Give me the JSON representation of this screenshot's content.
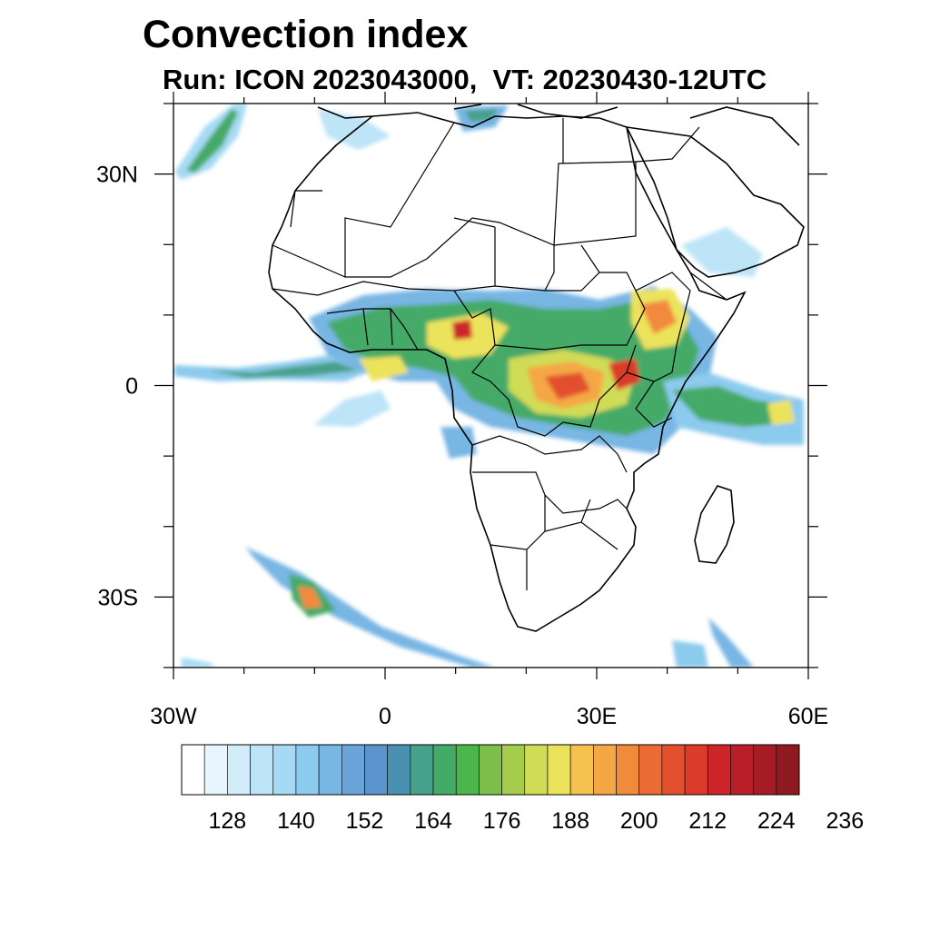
{
  "title": "Convection index",
  "subtitle": "Run: ICON 2023043000,  VT: 20230430-12UTC",
  "map": {
    "lon_range": [
      -30,
      60
    ],
    "lat_range": [
      -40,
      40
    ],
    "y_ticks": [
      {
        "lat": 30,
        "label": "30N"
      },
      {
        "lat": 0,
        "label": "0"
      },
      {
        "lat": -30,
        "label": "30S"
      }
    ],
    "x_ticks": [
      {
        "lon": -30,
        "label": "30W"
      },
      {
        "lon": 0,
        "label": "0"
      },
      {
        "lon": 30,
        "label": "30E"
      },
      {
        "lon": 60,
        "label": "60E"
      }
    ],
    "minor_tick_step_deg": 10,
    "colorbar": {
      "colors": [
        "#ffffff",
        "#e8f5fc",
        "#d2ecf9",
        "#bde4f7",
        "#a6daf4",
        "#8ccaee",
        "#78b6e4",
        "#6aa4d9",
        "#5a94cc",
        "#4a90b0",
        "#46a08a",
        "#44aa68",
        "#4cb54c",
        "#7dbf4a",
        "#a5cc4c",
        "#d0dc56",
        "#ece35c",
        "#f6c24e",
        "#f5a744",
        "#f28a3c",
        "#ec6a33",
        "#e2502e",
        "#db3b2b",
        "#cd2529",
        "#b81f28",
        "#a51b26",
        "#8f1a22"
      ],
      "labels": [
        "128",
        "140",
        "152",
        "164",
        "176",
        "188",
        "200",
        "212",
        "224",
        "236"
      ]
    }
  }
}
